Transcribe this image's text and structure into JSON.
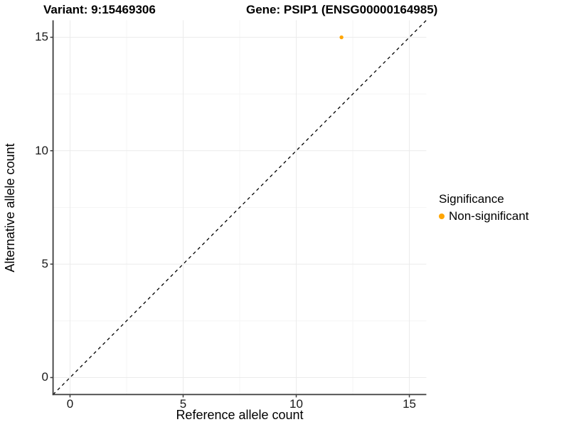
{
  "titles": {
    "variant": "Variant: 9:15469306",
    "gene": "Gene: PSIP1 (ENSG00000164985)"
  },
  "chart_data": {
    "type": "scatter",
    "xlabel": "Reference allele count",
    "ylabel": "Alternative allele count",
    "xlim": [
      -0.75,
      15.75
    ],
    "ylim": [
      -0.75,
      15.75
    ],
    "x_ticks": [
      0,
      5,
      10,
      15
    ],
    "y_ticks": [
      0,
      5,
      10,
      15
    ],
    "x_minor_ticks": [
      2.5,
      7.5,
      12.5
    ],
    "y_minor_ticks": [
      2.5,
      7.5,
      12.5
    ],
    "grid": "major+minor",
    "identity_line": {
      "slope": 1,
      "intercept": 0,
      "style": "dashed",
      "color": "#000000"
    },
    "series": [
      {
        "name": "Non-significant",
        "color": "#FFA500",
        "points": [
          {
            "x": 12,
            "y": 15
          }
        ],
        "point_radius": 2.7
      }
    ],
    "legend": {
      "position": "right",
      "title": "Significance",
      "entries": [
        {
          "label": "Non-significant",
          "color": "#FFA500",
          "marker": "circle-icon"
        }
      ]
    },
    "colors": {
      "axis": "#3c3c3c",
      "tick_label": "#1a1a1a",
      "grid_major": "#ebebeb",
      "grid_minor": "#f5f5f5",
      "background": "#ffffff"
    }
  }
}
